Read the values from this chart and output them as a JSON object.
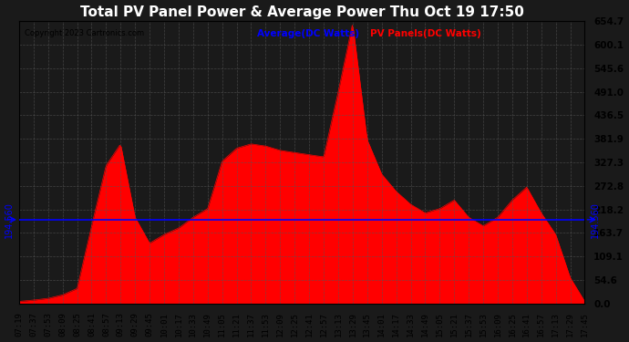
{
  "title": "Total PV Panel Power & Average Power Thu Oct 19 17:50",
  "copyright": "Copyright 2023 Cartronics.com",
  "legend_avg": "Average(DC Watts)",
  "legend_pv": "PV Panels(DC Watts)",
  "avg_value": 194.56,
  "avg_label": "194.560",
  "y_min": 0.0,
  "y_max": 654.7,
  "yticks": [
    0.0,
    54.6,
    109.1,
    163.7,
    218.2,
    272.8,
    327.3,
    381.9,
    436.5,
    491.0,
    545.6,
    600.1,
    654.7
  ],
  "bg_color": "#1a1a1a",
  "plot_bg_color": "#1a1a1a",
  "fill_color": "#ff0000",
  "line_color": "#ff0000",
  "avg_line_color": "#0000ff",
  "grid_color": "#555555",
  "title_color": "#ffffff",
  "tick_label_color": "#000000",
  "xtick_labels": [
    "07:19",
    "07:37",
    "07:53",
    "08:09",
    "08:25",
    "08:41",
    "08:57",
    "09:13",
    "09:29",
    "09:45",
    "10:01",
    "10:17",
    "10:33",
    "10:49",
    "11:05",
    "11:21",
    "11:37",
    "11:53",
    "12:09",
    "12:25",
    "12:41",
    "12:57",
    "13:13",
    "13:29",
    "13:45",
    "14:01",
    "14:17",
    "14:33",
    "14:49",
    "15:05",
    "15:21",
    "15:37",
    "15:53",
    "16:09",
    "16:25",
    "16:41",
    "16:57",
    "17:13",
    "17:29",
    "17:45"
  ],
  "pv_data": [
    5,
    8,
    12,
    20,
    35,
    180,
    320,
    370,
    200,
    140,
    160,
    175,
    200,
    220,
    330,
    360,
    370,
    365,
    355,
    350,
    345,
    340,
    490,
    650,
    380,
    300,
    260,
    230,
    210,
    220,
    240,
    200,
    180,
    200,
    240,
    270,
    210,
    160,
    60,
    5
  ]
}
